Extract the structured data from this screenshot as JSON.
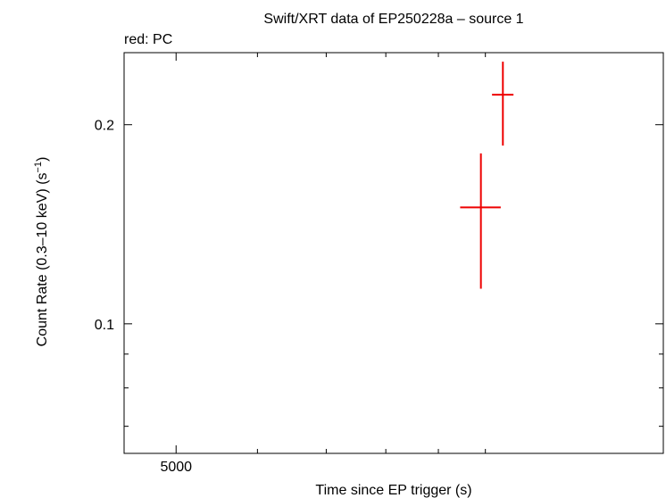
{
  "chart_data": {
    "type": "scatter",
    "title": "Swift/XRT data of EP250228a – source 1",
    "subtitle": "red: PC",
    "xlabel": "Time since EP trigger (s)",
    "ylabel_main": "Count Rate (0.3–10 keV) (s",
    "ylabel_sup": "−1",
    "ylabel_close": ")",
    "x_scale": "log",
    "y_scale": "log",
    "xlim": [
      4450,
      14900
    ],
    "ylim": [
      0.0637,
      0.257
    ],
    "x_tick_labels": [
      {
        "value": 5000,
        "label": "5000"
      }
    ],
    "x_minor_ticks": [
      6000,
      7000,
      8000,
      9000,
      10000
    ],
    "y_tick_labels": [
      {
        "value": 0.1,
        "label": "0.1"
      },
      {
        "value": 0.2,
        "label": "0.2"
      }
    ],
    "y_minor_ticks": [
      0.07,
      0.08,
      0.09,
      0.3
    ],
    "grid": false,
    "series": [
      {
        "color": "#ee0000",
        "points": [
          {
            "x": 9900,
            "x_lo": 9450,
            "x_hi": 10350,
            "y": 0.15,
            "y_lo": 0.113,
            "y_hi": 0.181
          },
          {
            "x": 10400,
            "x_lo": 10150,
            "x_hi": 10650,
            "y": 0.222,
            "y_lo": 0.186,
            "y_hi": 0.249
          }
        ]
      }
    ]
  }
}
